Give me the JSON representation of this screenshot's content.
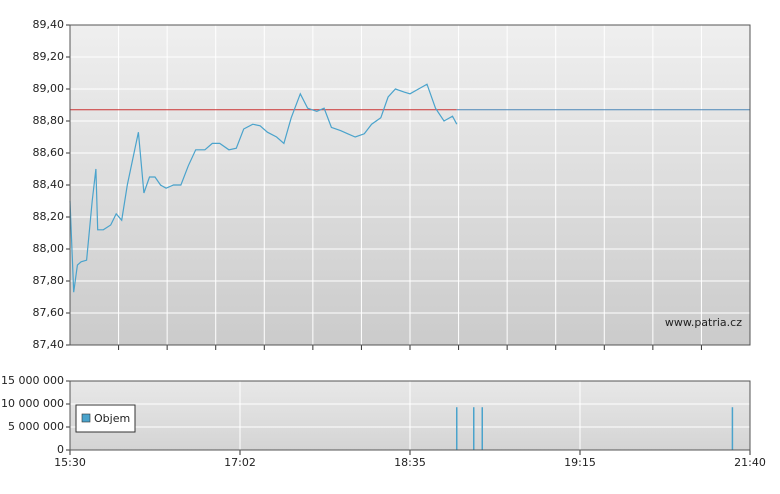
{
  "chart_data": [
    {
      "type": "line",
      "color": "#4aa3cc",
      "ref_value": 88.87,
      "ref_color": "#cc3333",
      "ref_color_after": "#4a86b8",
      "watermark": "www.patria.cz",
      "x": [
        930,
        932,
        934,
        936,
        939,
        942,
        944,
        945,
        948,
        952,
        955,
        958,
        961,
        965,
        967,
        970,
        973,
        976,
        979,
        982,
        986,
        990,
        994,
        998,
        1003,
        1007,
        1011,
        1016,
        1020,
        1024,
        1029,
        1033,
        1037,
        1042,
        1046,
        1050,
        1055,
        1059,
        1064,
        1068,
        1072,
        1077,
        1081,
        1085,
        1090,
        1094,
        1099,
        1103,
        1107,
        1112,
        1115,
        1117,
        1119,
        1121,
        1123,
        1125,
        1126
      ],
      "values": [
        88.3,
        87.73,
        87.9,
        87.92,
        87.93,
        88.3,
        88.5,
        88.12,
        88.12,
        88.15,
        88.22,
        88.18,
        88.4,
        88.62,
        88.73,
        88.35,
        88.45,
        88.45,
        88.4,
        88.38,
        88.4,
        88.4,
        88.52,
        88.62,
        88.62,
        88.66,
        88.66,
        88.62,
        88.63,
        88.75,
        88.78,
        88.77,
        88.73,
        88.7,
        88.66,
        88.82,
        88.97,
        88.88,
        88.86,
        88.88,
        88.76,
        88.74,
        88.72,
        88.7,
        88.72,
        88.78,
        88.82,
        88.95,
        89.0,
        88.98,
        88.97,
        89.0,
        89.03,
        88.88,
        88.8,
        88.83,
        88.78
      ],
      "ylim": [
        87.4,
        89.4
      ],
      "yticks": [
        {
          "value": 87.4,
          "label": "87,40"
        },
        {
          "value": 87.6,
          "label": "87,60"
        },
        {
          "value": 87.8,
          "label": "87,80"
        },
        {
          "value": 88.0,
          "label": "88,00"
        },
        {
          "value": 88.2,
          "label": "88,20"
        },
        {
          "value": 88.4,
          "label": "88,40"
        },
        {
          "value": 88.6,
          "label": "88,60"
        },
        {
          "value": 88.8,
          "label": "88,80"
        },
        {
          "value": 89.0,
          "label": "89,00"
        },
        {
          "value": 89.2,
          "label": "89,20"
        },
        {
          "value": 89.4,
          "label": "89,40"
        }
      ],
      "grid": true
    },
    {
      "type": "bar",
      "series": [
        {
          "name": "Objem",
          "color": "#4aa3cc",
          "values": [
            9300000,
            9300000,
            9300000,
            9300000
          ]
        }
      ],
      "x": [
        1126,
        1130,
        1132,
        1285
      ],
      "ylim": [
        0,
        15000000
      ],
      "yticks": [
        0,
        {
          "value": 5000000,
          "label": "5 000 000"
        },
        {
          "value": 10000000,
          "label": "10 000 000"
        },
        {
          "value": 15000000,
          "label": "15 000 000"
        }
      ],
      "xlim": [
        930,
        1300
      ],
      "xticks": [
        {
          "value": 930,
          "label": "15:30"
        },
        {
          "value": 1022,
          "label": "17:02"
        },
        {
          "value": 1115,
          "label": "18:35"
        },
        {
          "value": 1155,
          "label": "19:15"
        },
        {
          "value": 1300,
          "label": "21:40"
        }
      ],
      "grid": true
    }
  ]
}
